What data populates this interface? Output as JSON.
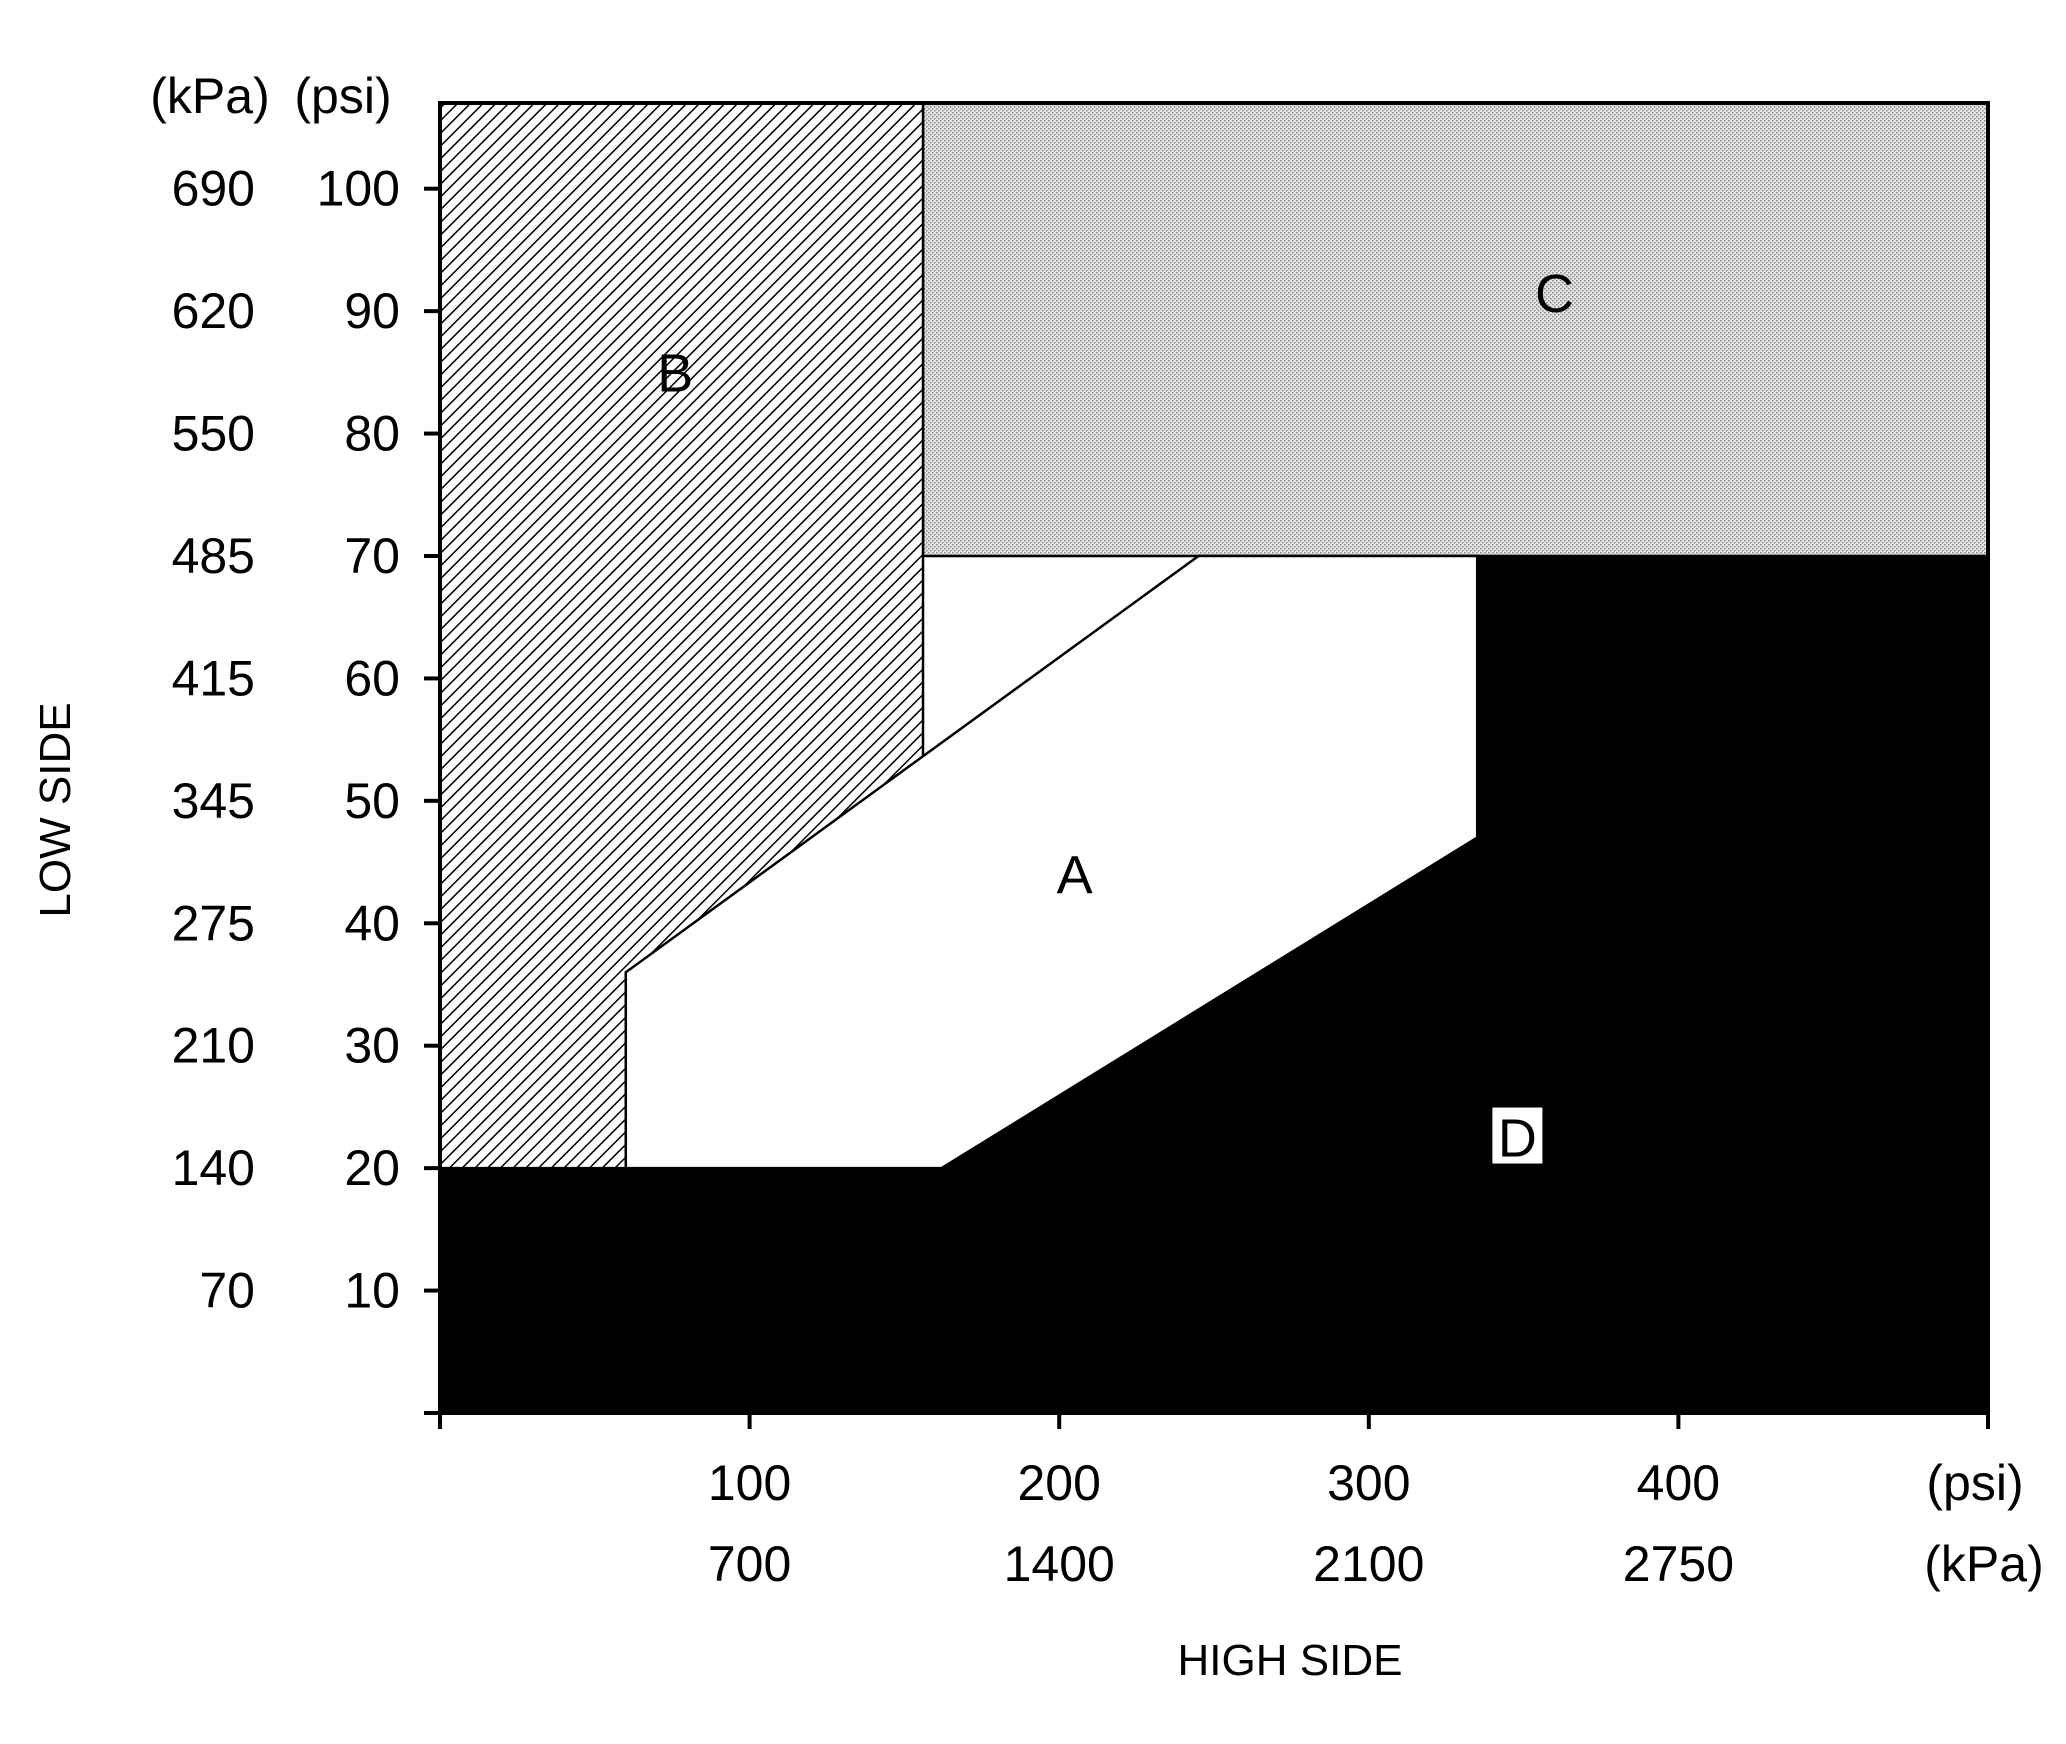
{
  "chart_data": {
    "type": "area",
    "title": "",
    "xlabel": "HIGH SIDE",
    "ylabel": "LOW SIDE",
    "x_unit_primary": "(psi)",
    "x_unit_secondary": "(kPa)",
    "y_unit_primary": "(psi)",
    "y_unit_secondary": "(kPa)",
    "xlim": [
      0,
      500
    ],
    "ylim": [
      0,
      107
    ],
    "grid": false,
    "x_ticks": [
      {
        "value": 0,
        "psi": "",
        "kpa": ""
      },
      {
        "value": 100,
        "psi": "100",
        "kpa": "700"
      },
      {
        "value": 200,
        "psi": "200",
        "kpa": "1400"
      },
      {
        "value": 300,
        "psi": "300",
        "kpa": "2100"
      },
      {
        "value": 400,
        "psi": "400",
        "kpa": "2750"
      },
      {
        "value": 500,
        "psi": "",
        "kpa": ""
      }
    ],
    "y_ticks": [
      {
        "value": 0,
        "psi": "",
        "kpa": ""
      },
      {
        "value": 10,
        "psi": "10",
        "kpa": "70"
      },
      {
        "value": 20,
        "psi": "20",
        "kpa": "140"
      },
      {
        "value": 30,
        "psi": "30",
        "kpa": "210"
      },
      {
        "value": 40,
        "psi": "40",
        "kpa": "275"
      },
      {
        "value": 50,
        "psi": "50",
        "kpa": "345"
      },
      {
        "value": 60,
        "psi": "60",
        "kpa": "415"
      },
      {
        "value": 70,
        "psi": "70",
        "kpa": "485"
      },
      {
        "value": 80,
        "psi": "80",
        "kpa": "550"
      },
      {
        "value": 90,
        "psi": "90",
        "kpa": "620"
      },
      {
        "value": 100,
        "psi": "100",
        "kpa": "690"
      }
    ],
    "regions": [
      {
        "label": "A",
        "fill": "white",
        "color": "#ffffff",
        "label_at": [
          205,
          44
        ],
        "points": [
          [
            60,
            20
          ],
          [
            60,
            36
          ],
          [
            245,
            70
          ],
          [
            335,
            70
          ],
          [
            335,
            47
          ],
          [
            162,
            20
          ]
        ]
      },
      {
        "label": "B",
        "fill": "hatch",
        "color": "#000000",
        "label_at": [
          76,
          85
        ],
        "points": [
          [
            0,
            20
          ],
          [
            0,
            107
          ],
          [
            156,
            107
          ],
          [
            156,
            52.5
          ],
          [
            60,
            36
          ],
          [
            60,
            20
          ]
        ]
      },
      {
        "label": "C",
        "fill": "stipple",
        "color": "#cfcfcf",
        "label_at": [
          360,
          91.5
        ],
        "points": [
          [
            156,
            107
          ],
          [
            500,
            107
          ],
          [
            500,
            70
          ],
          [
            156,
            70
          ]
        ]
      },
      {
        "label": "D",
        "fill": "solid",
        "color": "#000000",
        "label_at": [
          348,
          22.5
        ],
        "points": [
          [
            0,
            0
          ],
          [
            500,
            0
          ],
          [
            500,
            70
          ],
          [
            335,
            70
          ],
          [
            335,
            47
          ],
          [
            162,
            20
          ],
          [
            0,
            20
          ]
        ]
      }
    ]
  }
}
